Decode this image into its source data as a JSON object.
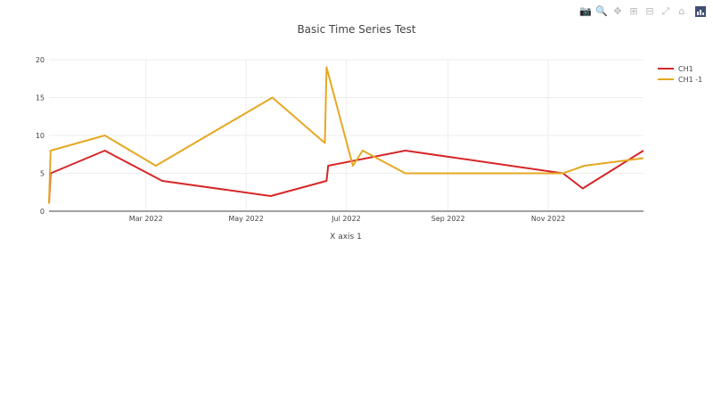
{
  "modebar": {
    "buttons": [
      {
        "icon": "camera-icon",
        "glyph": "📷",
        "active": false
      },
      {
        "icon": "zoom-icon",
        "glyph": "🔍",
        "active": true
      },
      {
        "icon": "pan-icon",
        "glyph": "✥",
        "active": false
      },
      {
        "icon": "zoom-in-icon",
        "glyph": "⊞",
        "active": false
      },
      {
        "icon": "zoom-out-icon",
        "glyph": "⊟",
        "active": false
      },
      {
        "icon": "autoscale-icon",
        "glyph": "⤢",
        "active": false
      },
      {
        "icon": "home-icon",
        "glyph": "⌂",
        "active": false
      }
    ],
    "logo": "plotly-logo-icon"
  },
  "chart_data": {
    "type": "line",
    "title": "Basic Time Series Test",
    "xlabel": "X axis 1",
    "ylabel": "",
    "xlim": [
      "2022-01-01",
      "2022-12-29"
    ],
    "ylim": [
      0,
      20
    ],
    "yticks": [
      0,
      5,
      10,
      15,
      20
    ],
    "xticks": [
      {
        "date": "2022-03-01",
        "label": "Mar 2022"
      },
      {
        "date": "2022-05-01",
        "label": "May 2022"
      },
      {
        "date": "2022-07-01",
        "label": "Jul 2022"
      },
      {
        "date": "2022-09-01",
        "label": "Sep 2022"
      },
      {
        "date": "2022-11-01",
        "label": "Nov 2022"
      }
    ],
    "grid": true,
    "legend_position": "top-right",
    "series": [
      {
        "name": "CH1",
        "color": "#d62728",
        "points": [
          {
            "x": "2022-01-01",
            "y": 1
          },
          {
            "x": "2022-01-02",
            "y": 5
          },
          {
            "x": "2022-02-04",
            "y": 8
          },
          {
            "x": "2022-03-11",
            "y": 4
          },
          {
            "x": "2022-05-16",
            "y": 2
          },
          {
            "x": "2022-06-19",
            "y": 4
          },
          {
            "x": "2022-06-20",
            "y": 6
          },
          {
            "x": "2022-08-06",
            "y": 8
          },
          {
            "x": "2022-11-10",
            "y": 5
          },
          {
            "x": "2022-11-22",
            "y": 3
          },
          {
            "x": "2022-12-29",
            "y": 8
          }
        ]
      },
      {
        "name": "CH1 -1",
        "color": "#e5a823",
        "points": [
          {
            "x": "2022-01-01",
            "y": 1
          },
          {
            "x": "2022-01-02",
            "y": 8
          },
          {
            "x": "2022-02-04",
            "y": 10
          },
          {
            "x": "2022-03-07",
            "y": 6
          },
          {
            "x": "2022-05-17",
            "y": 15
          },
          {
            "x": "2022-06-18",
            "y": 9
          },
          {
            "x": "2022-06-19",
            "y": 19
          },
          {
            "x": "2022-07-05",
            "y": 6
          },
          {
            "x": "2022-07-11",
            "y": 8
          },
          {
            "x": "2022-08-06",
            "y": 5
          },
          {
            "x": "2022-11-10",
            "y": 5
          },
          {
            "x": "2022-11-23",
            "y": 6
          },
          {
            "x": "2022-12-29",
            "y": 7
          }
        ]
      }
    ]
  }
}
